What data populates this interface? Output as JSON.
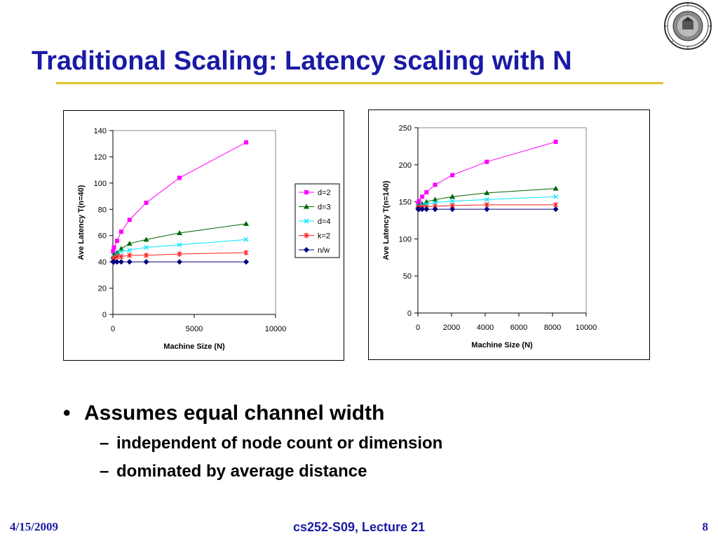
{
  "slide": {
    "title": "Traditional Scaling: Latency scaling with N",
    "bullets": [
      {
        "text": "Assumes equal channel width",
        "sub": [
          "independent of node count or dimension",
          "dominated by average distance"
        ]
      }
    ],
    "footer": {
      "date": "4/15/2009",
      "course": "cs252-S09, Lecture 21",
      "page": "8"
    },
    "colors": {
      "title": "#1a1aa6",
      "rule": "#e3c22d"
    },
    "logo_icon": "university-seal-icon"
  },
  "chart_data": [
    {
      "type": "line",
      "xlabel": "Machine Size (N)",
      "ylabel": "Ave Latency T(n=40)",
      "xlim": [
        0,
        10000
      ],
      "ylim": [
        0,
        140
      ],
      "xticks": [
        0,
        5000,
        10000
      ],
      "yticks": [
        0,
        20,
        40,
        60,
        80,
        100,
        120,
        140
      ],
      "legend": "right",
      "x": [
        16,
        64,
        256,
        512,
        1024,
        2048,
        4096,
        8192
      ],
      "series": [
        {
          "name": "d=2",
          "color": "#ff00ff",
          "marker": "square",
          "values": [
            48,
            51,
            56,
            63,
            72,
            85,
            104,
            131
          ]
        },
        {
          "name": "d=3",
          "color": "#006600",
          "marker": "triangle",
          "values": [
            44,
            45,
            47,
            50,
            54,
            57,
            62,
            69
          ]
        },
        {
          "name": "d=4",
          "color": "#00e5ff",
          "marker": "x",
          "values": [
            43,
            44,
            46,
            48,
            49,
            51,
            53,
            57
          ]
        },
        {
          "name": "k=2",
          "color": "#ff2020",
          "marker": "star",
          "values": [
            42,
            43,
            44,
            44,
            45,
            45,
            46,
            47
          ]
        },
        {
          "name": "n/w",
          "color": "#000080",
          "marker": "diamond",
          "values": [
            40,
            40,
            40,
            40,
            40,
            40,
            40,
            40
          ]
        }
      ]
    },
    {
      "type": "line",
      "xlabel": "Machine Size (N)",
      "ylabel": "Ave Latency T(n=140)",
      "xlim": [
        0,
        10000
      ],
      "ylim": [
        0,
        250
      ],
      "xticks": [
        0,
        2000,
        4000,
        6000,
        8000,
        10000
      ],
      "yticks": [
        0,
        50,
        100,
        150,
        200,
        250
      ],
      "legend": "none",
      "x": [
        16,
        64,
        256,
        512,
        1024,
        2048,
        4096,
        8192
      ],
      "series": [
        {
          "name": "d=2",
          "color": "#ff00ff",
          "marker": "square",
          "values": [
            148,
            151,
            157,
            163,
            173,
            186,
            204,
            231
          ]
        },
        {
          "name": "d=3",
          "color": "#006600",
          "marker": "triangle",
          "values": [
            144,
            145,
            147,
            150,
            153,
            157,
            162,
            168
          ]
        },
        {
          "name": "d=4",
          "color": "#00e5ff",
          "marker": "x",
          "values": [
            143,
            144,
            145,
            147,
            149,
            151,
            153,
            157
          ]
        },
        {
          "name": "k=2",
          "color": "#ff2020",
          "marker": "star",
          "values": [
            142,
            142,
            143,
            143,
            144,
            145,
            146,
            146
          ]
        },
        {
          "name": "n/w",
          "color": "#000080",
          "marker": "diamond",
          "values": [
            140,
            140,
            140,
            140,
            140,
            140,
            140,
            140
          ]
        }
      ]
    }
  ]
}
